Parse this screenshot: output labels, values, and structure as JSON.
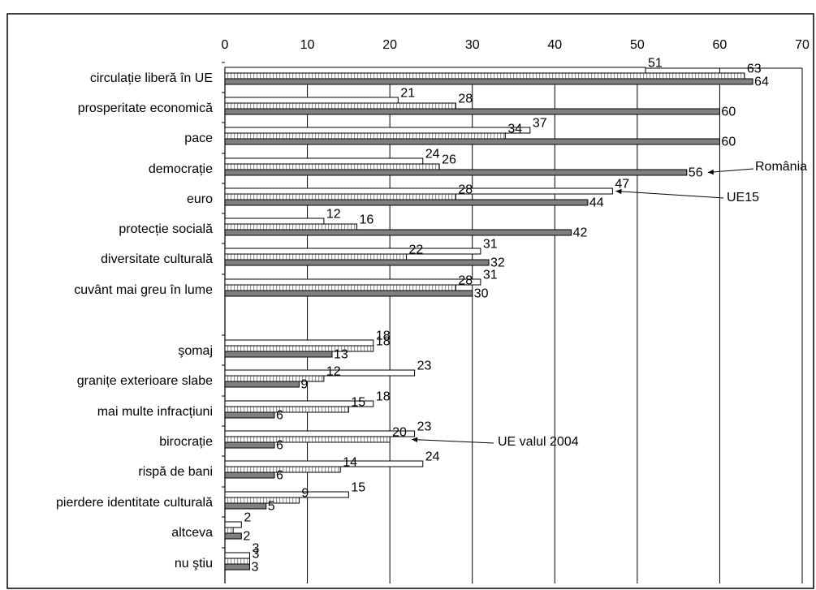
{
  "chart_data": {
    "type": "bar",
    "orientation": "horizontal",
    "xlim": [
      0,
      70
    ],
    "xticks": [
      0,
      10,
      20,
      30,
      40,
      50,
      60,
      70
    ],
    "grid": "vertical",
    "categories": [
      "circulație liberă în UE",
      "prosperitate economică",
      "pace",
      "democrație",
      "euro",
      "protecție socială",
      "diversitate culturală",
      "cuvânt mai greu în lume",
      "",
      "şomaj",
      "granițe exterioare slabe",
      "mai multe infracțiuni",
      "birocrație",
      "rispă de bani",
      "pierdere identitate culturală",
      "altceva",
      "nu ştiu"
    ],
    "series": [
      {
        "name": "UE15",
        "fill": "#ffffff",
        "values": [
          51,
          21,
          37,
          24,
          47,
          12,
          31,
          31,
          null,
          18,
          23,
          18,
          23,
          24,
          15,
          2,
          3
        ],
        "labels": [
          "51",
          "21",
          "37",
          "24",
          "47",
          "12",
          "31",
          "31",
          "",
          "18",
          "23",
          "18",
          "23",
          "24",
          "15",
          "2",
          "3"
        ]
      },
      {
        "name": "UE valul 2004",
        "fill": "#e6e6e6",
        "values": [
          63,
          28,
          34,
          26,
          28,
          16,
          22,
          28,
          null,
          18,
          12,
          15,
          20,
          14,
          9,
          1,
          3
        ],
        "labels": [
          "63",
          "28",
          "34",
          "26",
          "28",
          "16",
          "22",
          "28",
          "",
          "18",
          "12",
          "15",
          "20",
          "14",
          "9",
          "",
          "3"
        ]
      },
      {
        "name": "România",
        "fill": "#808080",
        "values": [
          64,
          60,
          60,
          56,
          44,
          42,
          32,
          30,
          null,
          13,
          9,
          6,
          6,
          6,
          5,
          2,
          3
        ],
        "labels": [
          "64",
          "60",
          "60",
          "56",
          "44",
          "42",
          "32",
          "30",
          "",
          "13",
          "9",
          "6",
          "6",
          "6",
          "5",
          "2",
          "3"
        ]
      }
    ],
    "annotations": [
      {
        "text": "România",
        "category_index": 3,
        "series": "România"
      },
      {
        "text": "UE15",
        "category_index": 4,
        "series": "UE15"
      },
      {
        "text": "UE valul 2004",
        "category_index": 12,
        "series": "UE valul 2004"
      }
    ]
  }
}
